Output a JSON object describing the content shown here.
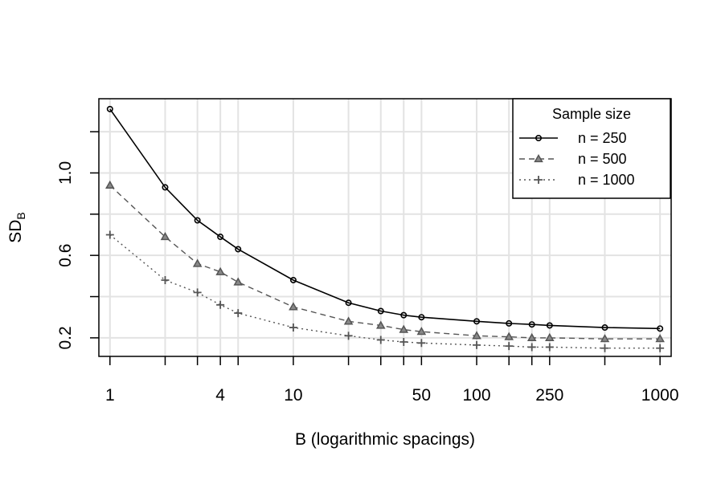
{
  "chart_data": {
    "type": "line",
    "xlabel": "B (logarithmic spacings)",
    "ylabel_main": "SD",
    "ylabel_sub": "B",
    "x_scale": "log",
    "xlim": [
      0.87,
      1150
    ],
    "ylim": [
      0.11,
      1.36
    ],
    "grid": true,
    "x": [
      1,
      2,
      3,
      4,
      5,
      10,
      20,
      30,
      40,
      50,
      100,
      150,
      200,
      250,
      500,
      1000
    ],
    "x_ticks": [
      1,
      2,
      3,
      4,
      5,
      10,
      20,
      30,
      40,
      50,
      100,
      150,
      200,
      250,
      500,
      1000
    ],
    "x_tick_labels": [
      "1",
      "",
      "",
      "4",
      "",
      "10",
      "",
      "",
      "",
      "50",
      "100",
      "",
      "",
      "250",
      "",
      "1000"
    ],
    "y_ticks": [
      0.2,
      0.4,
      0.6,
      0.8,
      1.0,
      1.2
    ],
    "y_tick_labels": [
      "0.2",
      "",
      "0.6",
      "",
      "1.0",
      ""
    ],
    "legend": {
      "title": "Sample size",
      "position": "top-right"
    },
    "series": [
      {
        "name": "n = 250",
        "color": "#000000",
        "line_style": "solid",
        "marker": "circle",
        "values": [
          1.31,
          0.93,
          0.77,
          0.69,
          0.63,
          0.48,
          0.37,
          0.33,
          0.31,
          0.3,
          0.28,
          0.27,
          0.265,
          0.26,
          0.25,
          0.245
        ]
      },
      {
        "name": "n = 500",
        "color": "#555555",
        "line_style": "dashed",
        "marker": "triangle",
        "values": [
          0.94,
          0.69,
          0.56,
          0.52,
          0.47,
          0.35,
          0.28,
          0.26,
          0.24,
          0.23,
          0.21,
          0.205,
          0.2,
          0.2,
          0.195,
          0.195
        ]
      },
      {
        "name": "n = 1000",
        "color": "#555555",
        "line_style": "dotted",
        "marker": "plus",
        "values": [
          0.7,
          0.48,
          0.42,
          0.36,
          0.32,
          0.25,
          0.21,
          0.19,
          0.18,
          0.175,
          0.165,
          0.16,
          0.155,
          0.155,
          0.15,
          0.15
        ]
      }
    ]
  }
}
